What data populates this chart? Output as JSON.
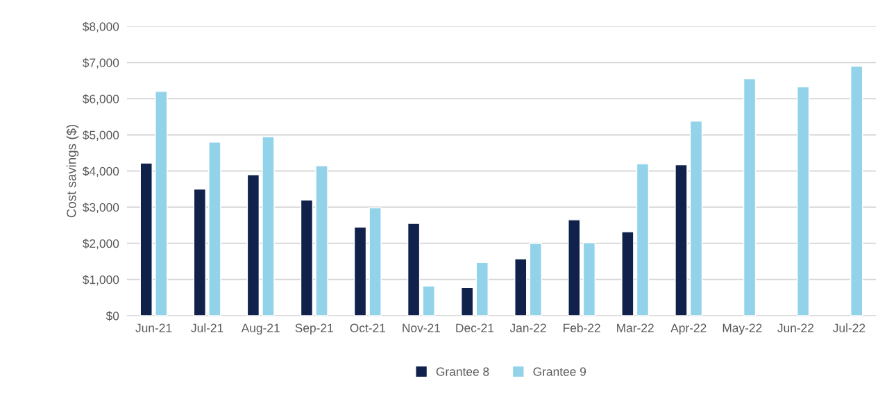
{
  "chart_data": {
    "type": "bar",
    "ylabel": "Cost savings ($)",
    "categories": [
      "Jun-21",
      "Jul-21",
      "Aug-21",
      "Sep-21",
      "Oct-21",
      "Nov-21",
      "Dec-21",
      "Jan-22",
      "Feb-22",
      "Mar-22",
      "Apr-22",
      "May-22",
      "Jun-22",
      "Jul-22"
    ],
    "series": [
      {
        "name": "Grantee 8",
        "color": "#10214b",
        "values": [
          4220,
          3500,
          3900,
          3200,
          2450,
          2550,
          780,
          1570,
          2650,
          2320,
          4170,
          null,
          null,
          null
        ]
      },
      {
        "name": "Grantee 9",
        "color": "#93d3ea",
        "values": [
          6200,
          4800,
          4950,
          4150,
          2980,
          820,
          1470,
          2000,
          2020,
          4200,
          5380,
          6550,
          6330,
          6900
        ]
      }
    ],
    "ylim": [
      0,
      8000
    ],
    "yticks": [
      {
        "value": 0,
        "label": "$0"
      },
      {
        "value": 1000,
        "label": "$1,000"
      },
      {
        "value": 2000,
        "label": "$2,000"
      },
      {
        "value": 3000,
        "label": "$3,000"
      },
      {
        "value": 4000,
        "label": "$4,000"
      },
      {
        "value": 5000,
        "label": "$5,000"
      },
      {
        "value": 6000,
        "label": "$6,000"
      },
      {
        "value": 7000,
        "label": "$7,000"
      },
      {
        "value": 8000,
        "label": "$8,000"
      }
    ],
    "grid": "y",
    "legend": "bottom"
  }
}
